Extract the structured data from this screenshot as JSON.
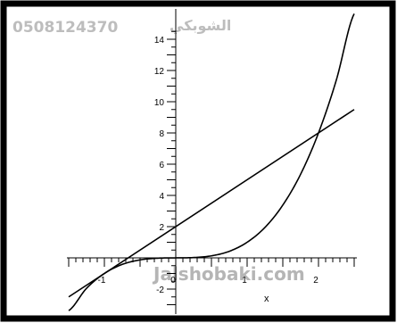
{
  "watermark": {
    "phone": "0508124370",
    "arabic": "الشوبكي",
    "site": "Jalshobaki.com"
  },
  "chart_data": {
    "type": "line",
    "title": "",
    "xlabel": "x",
    "ylabel": "",
    "xlim": [
      -1.5,
      2.5
    ],
    "ylim": [
      -3.5,
      15
    ],
    "grid": false,
    "x_tick_labels": [
      "-1",
      "0",
      "1",
      "2"
    ],
    "y_tick_labels": [
      "-2",
      "2",
      "4",
      "6",
      "8",
      "10",
      "12",
      "14"
    ],
    "series": [
      {
        "kind": "curve",
        "x": [
          -1.5,
          -1.25,
          -1.0,
          -0.75,
          -0.5,
          -0.25,
          0,
          0.25,
          0.5,
          0.75,
          1.0,
          1.25,
          1.5,
          1.75,
          2.0,
          2.25,
          2.5
        ],
        "y": [
          -3.38,
          -1.95,
          -1.0,
          -0.42,
          -0.13,
          -0.02,
          0,
          0.02,
          0.13,
          0.42,
          1.0,
          1.95,
          3.38,
          5.36,
          8.0,
          11.39,
          15.63
        ]
      },
      {
        "kind": "tangent-line",
        "x": [
          -1.5,
          2.5
        ],
        "y": [
          -2.5,
          9.5
        ]
      }
    ],
    "colors": {
      "curve": "#000000",
      "axes": "#000000",
      "border": "#000000"
    }
  }
}
